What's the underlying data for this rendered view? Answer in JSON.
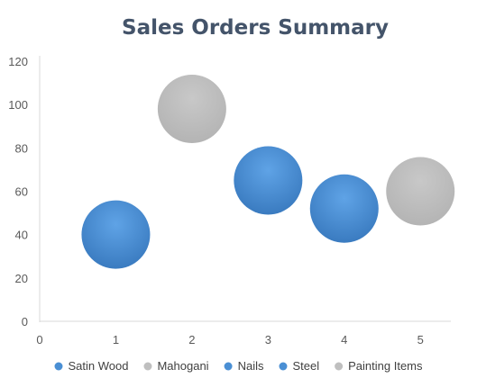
{
  "chart_data": {
    "type": "bubble",
    "title": "Sales Orders Summary",
    "xlabel": "",
    "ylabel": "",
    "xlim": [
      0,
      5.4
    ],
    "ylim": [
      0,
      120
    ],
    "x_ticks": [
      0,
      1,
      2,
      3,
      4,
      5
    ],
    "y_ticks": [
      0,
      20,
      40,
      60,
      80,
      100,
      120
    ],
    "grid": false,
    "legend_position": "bottom",
    "series": [
      {
        "name": "Satin Wood",
        "color": "#4a8fd4",
        "points": [
          {
            "x": 1,
            "y": 40
          }
        ]
      },
      {
        "name": "Mahogani",
        "color": "#bfbfbf",
        "points": [
          {
            "x": 2,
            "y": 98
          }
        ]
      },
      {
        "name": "Nails",
        "color": "#4a8fd4",
        "points": [
          {
            "x": 3,
            "y": 65
          }
        ]
      },
      {
        "name": "Steel",
        "color": "#4a8fd4",
        "points": [
          {
            "x": 4,
            "y": 52
          }
        ]
      },
      {
        "name": "Painting Items",
        "color": "#bfbfbf",
        "points": [
          {
            "x": 5,
            "y": 60
          }
        ]
      }
    ]
  }
}
